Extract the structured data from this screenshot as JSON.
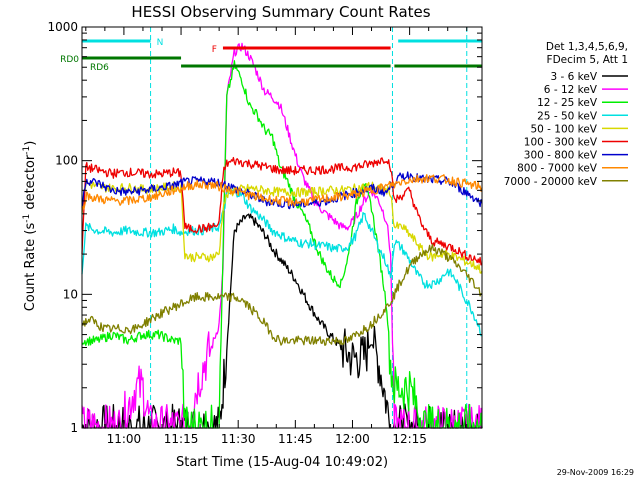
{
  "chart_data": {
    "type": "line",
    "title": "HESSI Observing Summary Count Rates",
    "xlabel": "Start Time (15-Aug-04 10:49:02)",
    "ylabel_main": "Count Rate (s",
    "ylabel_sup1": "-1",
    "ylabel_mid": " detector",
    "ylabel_sup2": "-1",
    "ylabel_end": ")",
    "y_scale": "log",
    "ylim": [
      1,
      1000
    ],
    "xlim_minutes": [
      0,
      105
    ],
    "x_tick_minutes": [
      11,
      26,
      41,
      56,
      71,
      86
    ],
    "x_tick_labels": [
      "11:00",
      "11:15",
      "11:30",
      "11:45",
      "12:00",
      "12:15"
    ],
    "y_tick_values": [
      1,
      10,
      100,
      1000
    ],
    "y_tick_labels": [
      "1",
      "10",
      "100",
      "1000"
    ],
    "legend_header": [
      "Det 1,3,4,5,6,9,",
      "FDecim 5, Att 1"
    ],
    "legend_position": "right",
    "footer_date": "29-Nov-2009 16:29",
    "flags": [
      {
        "label": "N",
        "color": "#00e0e0",
        "segments": [
          [
            0,
            18
          ],
          [
            83,
            105
          ]
        ]
      },
      {
        "label": "F",
        "color": "#ee0000",
        "segments": [
          [
            37,
            81
          ]
        ]
      },
      {
        "label": "RD0",
        "color": "#007700",
        "segments": [
          [
            0,
            26
          ]
        ]
      },
      {
        "label": "RD6",
        "color": "#007700",
        "segments": [
          [
            26,
            81
          ],
          [
            82,
            105
          ]
        ]
      }
    ],
    "night_marks_minutes": [
      0,
      18,
      81.5,
      101
    ],
    "series": [
      {
        "name": "3 - 6 keV",
        "color": "#000000",
        "x": [
          0,
          2,
          4,
          8,
          12,
          16,
          20,
          24,
          26,
          27,
          28,
          30,
          32,
          34,
          36,
          37,
          38,
          40,
          43,
          45,
          48,
          50,
          53,
          56,
          59,
          62,
          65,
          68,
          71,
          74,
          76,
          78,
          80,
          81,
          82,
          86,
          90,
          95,
          100,
          105
        ],
        "y": [
          1,
          1,
          1,
          1,
          1,
          1,
          1,
          1,
          1,
          1,
          1,
          1,
          1,
          1,
          1,
          2,
          4,
          30,
          38,
          36,
          28,
          22,
          17,
          13,
          9,
          6.5,
          5,
          4,
          3.3,
          3.4,
          4.5,
          3,
          1.5,
          1,
          1,
          1,
          1,
          1,
          1,
          1
        ]
      },
      {
        "name": "6 - 12 keV",
        "color": "#ff00ff",
        "x": [
          0,
          5,
          10,
          14,
          16,
          18,
          20,
          24,
          26,
          28,
          30,
          32,
          34,
          36,
          37,
          38,
          40,
          42,
          44,
          46,
          48,
          50,
          52,
          54,
          56,
          58,
          61,
          64,
          66,
          68,
          70,
          72,
          74,
          76,
          78,
          80,
          81,
          82,
          86,
          90,
          95,
          100,
          105
        ],
        "y": [
          1,
          1,
          1,
          2,
          2,
          1,
          1,
          1,
          1,
          1,
          2,
          3,
          4,
          6,
          15,
          300,
          650,
          720,
          600,
          450,
          330,
          300,
          260,
          170,
          110,
          75,
          50,
          40,
          36,
          32,
          32,
          38,
          50,
          60,
          50,
          35,
          20,
          1,
          1,
          1,
          1,
          1,
          1
        ]
      },
      {
        "name": "12 - 25 keV",
        "color": "#00ee00",
        "x": [
          0,
          4,
          8,
          12,
          16,
          20,
          24,
          26,
          27,
          28,
          30,
          32,
          34,
          36,
          37,
          38,
          40,
          42,
          44,
          46,
          48,
          50,
          52,
          54,
          56,
          58,
          60,
          62,
          64,
          66,
          68,
          70,
          72,
          74,
          76,
          78,
          80,
          81,
          82,
          86,
          90,
          95,
          100,
          105
        ],
        "y": [
          4.5,
          4.5,
          5,
          4.5,
          5,
          5,
          4.5,
          4.5,
          1,
          1,
          1,
          1,
          1,
          1,
          20,
          300,
          520,
          400,
          260,
          220,
          170,
          150,
          90,
          70,
          50,
          40,
          30,
          21,
          16,
          13,
          12,
          20,
          48,
          70,
          45,
          20,
          8,
          3,
          2,
          2,
          1,
          1,
          1,
          1
        ]
      },
      {
        "name": "25 - 50 keV",
        "color": "#00e0e0",
        "x": [
          0,
          1,
          4,
          8,
          12,
          16,
          20,
          24,
          26,
          28,
          30,
          32,
          34,
          36,
          37,
          38,
          40,
          42,
          44,
          46,
          48,
          50,
          52,
          54,
          56,
          58,
          60,
          62,
          64,
          66,
          68,
          70,
          72,
          74,
          76,
          78,
          80,
          81,
          82,
          84,
          86,
          88,
          90,
          92,
          94,
          96,
          98,
          100,
          102,
          104,
          105
        ],
        "y": [
          15,
          32,
          30,
          29,
          30,
          29,
          29,
          31,
          29,
          30,
          30,
          30,
          31,
          32,
          40,
          55,
          60,
          55,
          45,
          40,
          35,
          30,
          28,
          26,
          25,
          24,
          24,
          23,
          23,
          22,
          22,
          23,
          28,
          40,
          30,
          22,
          17,
          13,
          25,
          22,
          18,
          14,
          12,
          12,
          13,
          15,
          13,
          10,
          8,
          6,
          5
        ]
      },
      {
        "name": "50 - 100 keV",
        "color": "#d8d800",
        "x": [
          0,
          1,
          4,
          8,
          12,
          16,
          20,
          24,
          26,
          27,
          28,
          30,
          32,
          34,
          36,
          37,
          38,
          40,
          44,
          48,
          52,
          56,
          60,
          64,
          68,
          72,
          76,
          78,
          80,
          81,
          82,
          84,
          86,
          88,
          90,
          92,
          94,
          96,
          98,
          100,
          102,
          104,
          105
        ],
        "y": [
          40,
          68,
          64,
          62,
          63,
          61,
          62,
          64,
          62,
          20,
          19,
          19,
          19,
          19,
          20,
          45,
          55,
          60,
          62,
          60,
          58,
          58,
          58,
          60,
          60,
          62,
          65,
          62,
          60,
          58,
          32,
          32,
          28,
          24,
          20,
          19,
          20,
          20,
          19,
          18,
          17,
          16,
          15
        ]
      },
      {
        "name": "100 - 300 keV",
        "color": "#ee0000",
        "x": [
          0,
          1,
          4,
          8,
          12,
          16,
          20,
          24,
          26,
          27,
          28,
          30,
          32,
          34,
          36,
          37,
          38,
          40,
          44,
          48,
          52,
          56,
          60,
          64,
          68,
          72,
          76,
          78,
          80,
          81,
          82,
          84,
          86,
          88,
          90,
          92,
          94,
          96,
          98,
          100,
          102,
          104,
          105
        ],
        "y": [
          20,
          90,
          85,
          80,
          82,
          80,
          79,
          82,
          80,
          32,
          31,
          31,
          31,
          32,
          33,
          80,
          95,
          100,
          95,
          90,
          85,
          84,
          85,
          86,
          88,
          90,
          95,
          100,
          105,
          90,
          50,
          55,
          60,
          40,
          30,
          25,
          24,
          23,
          22,
          20,
          19,
          18,
          17
        ]
      },
      {
        "name": "300 - 800 keV",
        "color": "#0000cc",
        "x": [
          0,
          1,
          4,
          8,
          12,
          16,
          20,
          24,
          26,
          28,
          30,
          32,
          34,
          36,
          38,
          40,
          44,
          48,
          52,
          56,
          60,
          64,
          68,
          72,
          76,
          78,
          80,
          81,
          82,
          84,
          86,
          88,
          90,
          92,
          94,
          96,
          98,
          100,
          102,
          104,
          105
        ],
        "y": [
          45,
          72,
          68,
          60,
          58,
          60,
          62,
          65,
          68,
          70,
          70,
          70,
          70,
          68,
          66,
          62,
          56,
          50,
          48,
          47,
          48,
          50,
          54,
          58,
          62,
          60,
          58,
          64,
          70,
          76,
          78,
          74,
          72,
          72,
          71,
          70,
          65,
          60,
          55,
          50,
          48
        ]
      },
      {
        "name": "800 - 7000 keV",
        "color": "#ff8800",
        "x": [
          0,
          1,
          4,
          8,
          12,
          16,
          20,
          24,
          26,
          28,
          30,
          32,
          34,
          36,
          38,
          40,
          44,
          48,
          52,
          56,
          60,
          64,
          68,
          72,
          76,
          78,
          80,
          81,
          82,
          84,
          86,
          88,
          90,
          92,
          94,
          96,
          98,
          100,
          102,
          104,
          105
        ],
        "y": [
          40,
          55,
          52,
          50,
          50,
          52,
          55,
          60,
          62,
          65,
          66,
          66,
          66,
          64,
          62,
          60,
          55,
          52,
          50,
          49,
          50,
          52,
          54,
          56,
          60,
          62,
          64,
          66,
          66,
          70,
          72,
          73,
          74,
          74,
          73,
          72,
          70,
          68,
          66,
          64,
          63
        ]
      },
      {
        "name": "7000 - 20000 keV",
        "color": "#808000",
        "x": [
          0,
          2,
          4,
          6,
          8,
          10,
          12,
          14,
          16,
          18,
          20,
          22,
          24,
          26,
          28,
          30,
          32,
          34,
          36,
          38,
          40,
          42,
          44,
          46,
          48,
          50,
          52,
          54,
          56,
          58,
          60,
          62,
          64,
          66,
          68,
          70,
          72,
          74,
          76,
          78,
          80,
          82,
          84,
          86,
          88,
          90,
          92,
          94,
          96,
          98,
          100,
          102,
          104,
          105
        ],
        "y": [
          6,
          6.5,
          6,
          5.5,
          5.5,
          5.5,
          5.5,
          5.5,
          6,
          6.5,
          7,
          7.5,
          8,
          8.5,
          9,
          9.5,
          9.5,
          9.5,
          9.5,
          9.5,
          9.5,
          9,
          8,
          7,
          6,
          5,
          4.5,
          4.5,
          4.5,
          4.5,
          4.5,
          4.5,
          4.5,
          4.5,
          4.5,
          4.5,
          5,
          5.5,
          6,
          7,
          8,
          10,
          13,
          16,
          19,
          21,
          22,
          21,
          19,
          17,
          15,
          13,
          11,
          10
        ]
      }
    ]
  }
}
